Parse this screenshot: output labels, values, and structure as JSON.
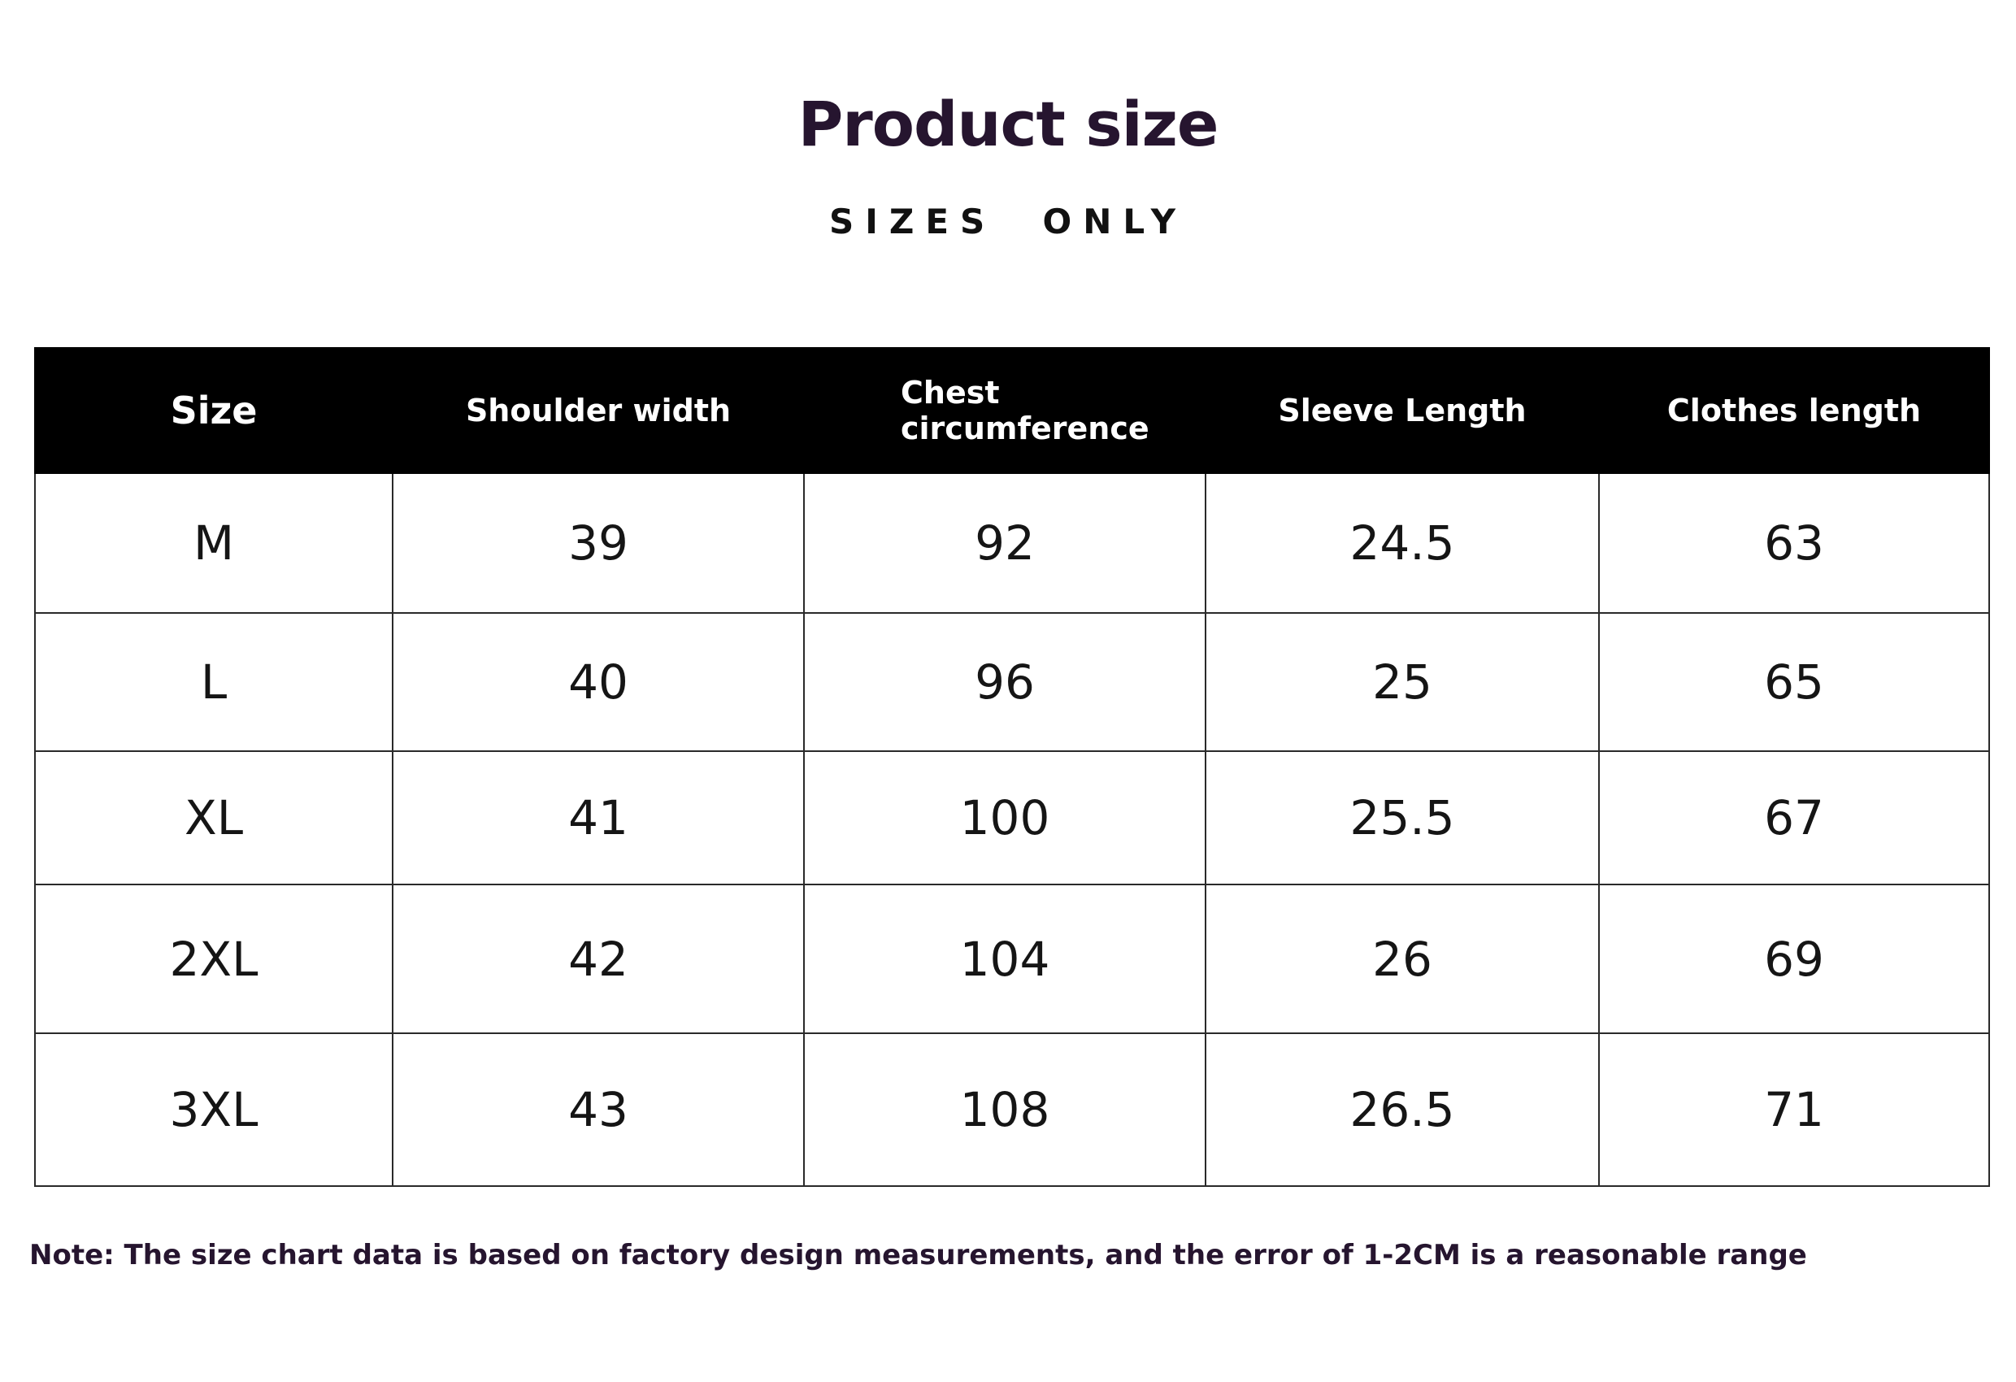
{
  "header": {
    "title": "Product size",
    "subtitle": "SIZES  ONLY"
  },
  "table": {
    "columns": [
      "Size",
      "Shoulder width",
      "Chest circumference",
      "Sleeve Length",
      "Clothes length"
    ],
    "rows": [
      [
        "M",
        "39",
        "92",
        "24.5",
        "63"
      ],
      [
        "L",
        "40",
        "96",
        "25",
        "65"
      ],
      [
        "XL",
        "41",
        "100",
        "25.5",
        "67"
      ],
      [
        "2XL",
        "42",
        "104",
        "26",
        "69"
      ],
      [
        "3XL",
        "43",
        "108",
        "26.5",
        "71"
      ]
    ]
  },
  "note": "Note: The size chart data is based on factory design measurements, and the error of 1-2CM is a reasonable range",
  "colors": {
    "header_bg": "#000000",
    "header_text": "#ffffff",
    "title_text": "#26152f",
    "border": "#2a2a2a"
  }
}
